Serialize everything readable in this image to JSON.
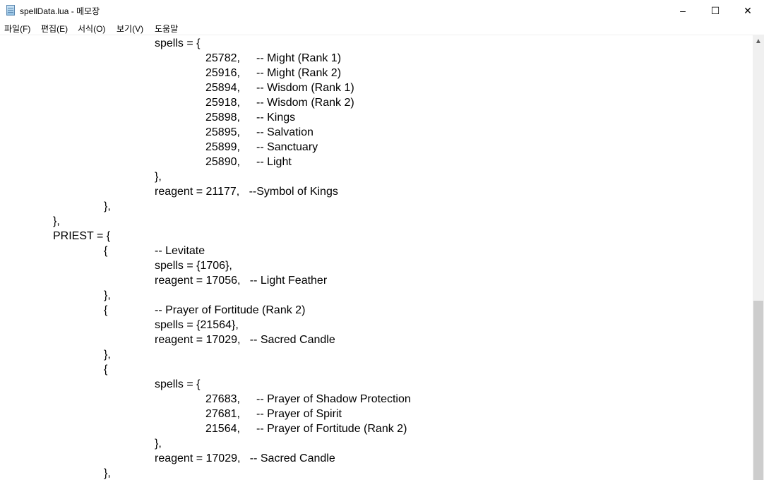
{
  "window": {
    "title": "spellData.lua - 메모장",
    "icon": "notepad-icon",
    "controls": {
      "minimize": "–",
      "maximize": "☐",
      "close": "✕"
    }
  },
  "menu": [
    {
      "label": "파일(F)"
    },
    {
      "label": "편집(E)"
    },
    {
      "label": "서식(O)"
    },
    {
      "label": "보기(V)"
    },
    {
      "label": "도움말"
    }
  ],
  "editor": {
    "lines": [
      "\t\t\tspells = {",
      "\t\t\t\t25782,\t-- Might (Rank 1)",
      "\t\t\t\t25916,\t-- Might (Rank 2)",
      "\t\t\t\t25894,\t-- Wisdom (Rank 1)",
      "\t\t\t\t25918,\t-- Wisdom (Rank 2)",
      "\t\t\t\t25898,\t-- Kings",
      "\t\t\t\t25895,\t-- Salvation",
      "\t\t\t\t25899,\t-- Sanctuary",
      "\t\t\t\t25890,\t-- Light",
      "\t\t\t},",
      "\t\t\treagent = 21177,   --Symbol of Kings",
      "\t\t},",
      "\t},",
      "\tPRIEST = {",
      "\t\t{\t-- Levitate",
      "\t\t\tspells = {1706},",
      "\t\t\treagent = 17056,   -- Light Feather",
      "\t\t},",
      "\t\t{\t-- Prayer of Fortitude (Rank 2)",
      "\t\t\tspells = {21564},",
      "\t\t\treagent = 17029,   -- Sacred Candle",
      "\t\t},",
      "\t\t{",
      "\t\t\tspells = {",
      "\t\t\t\t27683,\t-- Prayer of Shadow Protection",
      "\t\t\t\t27681,\t-- Prayer of Spirit",
      "\t\t\t\t21564,\t-- Prayer of Fortitude (Rank 2)",
      "\t\t\t},",
      "\t\t\treagent = 17029,   -- Sacred Candle",
      "\t\t},"
    ]
  },
  "scrollbar": {
    "position_fraction": 0.6,
    "visible_fraction": 0.4
  }
}
